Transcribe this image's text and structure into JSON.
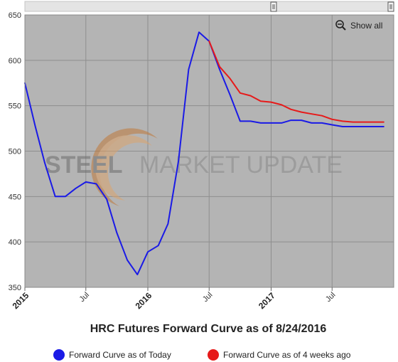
{
  "chart_data": {
    "type": "line",
    "title": "HRC Futures Forward Curve as of 8/24/2016",
    "x_axis": {
      "type": "datetime",
      "range": [
        "2015-01-01",
        "2017-12-31"
      ],
      "major_ticks": [
        {
          "date": "2015-01-01",
          "label": "2015"
        },
        {
          "date": "2016-01-01",
          "label": "2016"
        },
        {
          "date": "2017-01-01",
          "label": "2017"
        }
      ],
      "minor_ticks": [
        {
          "date": "2015-07-01",
          "label": "Jul"
        },
        {
          "date": "2016-07-01",
          "label": "Jul"
        },
        {
          "date": "2017-07-01",
          "label": "Jul"
        }
      ]
    },
    "y_axis": {
      "range": [
        350,
        650
      ],
      "ticks": [
        350,
        400,
        450,
        500,
        550,
        600,
        650
      ]
    },
    "grid": true,
    "legend": "bottom",
    "series": [
      {
        "name": "Forward Curve as of Today",
        "color": "#1a1ae6",
        "points": [
          [
            "2015-01-01",
            575
          ],
          [
            "2015-02-01",
            527
          ],
          [
            "2015-03-01",
            487
          ],
          [
            "2015-04-01",
            450
          ],
          [
            "2015-05-01",
            450
          ],
          [
            "2015-06-01",
            459
          ],
          [
            "2015-07-01",
            466
          ],
          [
            "2015-08-01",
            464
          ],
          [
            "2015-09-01",
            447
          ],
          [
            "2015-10-01",
            410
          ],
          [
            "2015-11-01",
            380
          ],
          [
            "2015-12-01",
            364
          ],
          [
            "2016-01-01",
            389
          ],
          [
            "2016-02-01",
            396
          ],
          [
            "2016-03-01",
            420
          ],
          [
            "2016-04-01",
            489
          ],
          [
            "2016-05-01",
            590
          ],
          [
            "2016-06-01",
            631
          ],
          [
            "2016-07-01",
            621
          ],
          [
            "2016-08-01",
            590
          ],
          [
            "2016-09-01",
            562
          ],
          [
            "2016-10-01",
            533
          ],
          [
            "2016-11-01",
            533
          ],
          [
            "2016-12-01",
            531
          ],
          [
            "2017-01-01",
            531
          ],
          [
            "2017-02-01",
            531
          ],
          [
            "2017-03-01",
            534
          ],
          [
            "2017-04-01",
            534
          ],
          [
            "2017-05-01",
            531
          ],
          [
            "2017-06-01",
            531
          ],
          [
            "2017-07-01",
            529
          ],
          [
            "2017-08-01",
            527
          ],
          [
            "2017-09-01",
            527
          ],
          [
            "2017-10-01",
            527
          ],
          [
            "2017-11-01",
            527
          ],
          [
            "2017-12-01",
            527
          ]
        ]
      },
      {
        "name": "Forward Curve as of 4 weeks ago",
        "color": "#e61a1a",
        "points": [
          [
            "2016-07-01",
            621
          ],
          [
            "2016-08-01",
            593
          ],
          [
            "2016-09-01",
            580
          ],
          [
            "2016-10-01",
            564
          ],
          [
            "2016-11-01",
            561
          ],
          [
            "2016-12-01",
            555
          ],
          [
            "2017-01-01",
            554
          ],
          [
            "2017-02-01",
            551
          ],
          [
            "2017-03-01",
            546
          ],
          [
            "2017-04-01",
            543
          ],
          [
            "2017-05-01",
            541
          ],
          [
            "2017-06-01",
            539
          ],
          [
            "2017-07-01",
            535
          ],
          [
            "2017-08-01",
            533
          ],
          [
            "2017-09-01",
            532
          ],
          [
            "2017-10-01",
            532
          ],
          [
            "2017-11-01",
            532
          ],
          [
            "2017-12-01",
            532
          ]
        ]
      }
    ]
  },
  "toolbar": {
    "show_all_label": "Show all",
    "zoom_icon": "zoom-out-magnifier-icon"
  },
  "watermark": {
    "text_bold": "STEEL",
    "text_regular": "MARKET UPDATE"
  },
  "colors": {
    "plot_background": "#b4b4b4",
    "grid": "#8e8e8e"
  }
}
